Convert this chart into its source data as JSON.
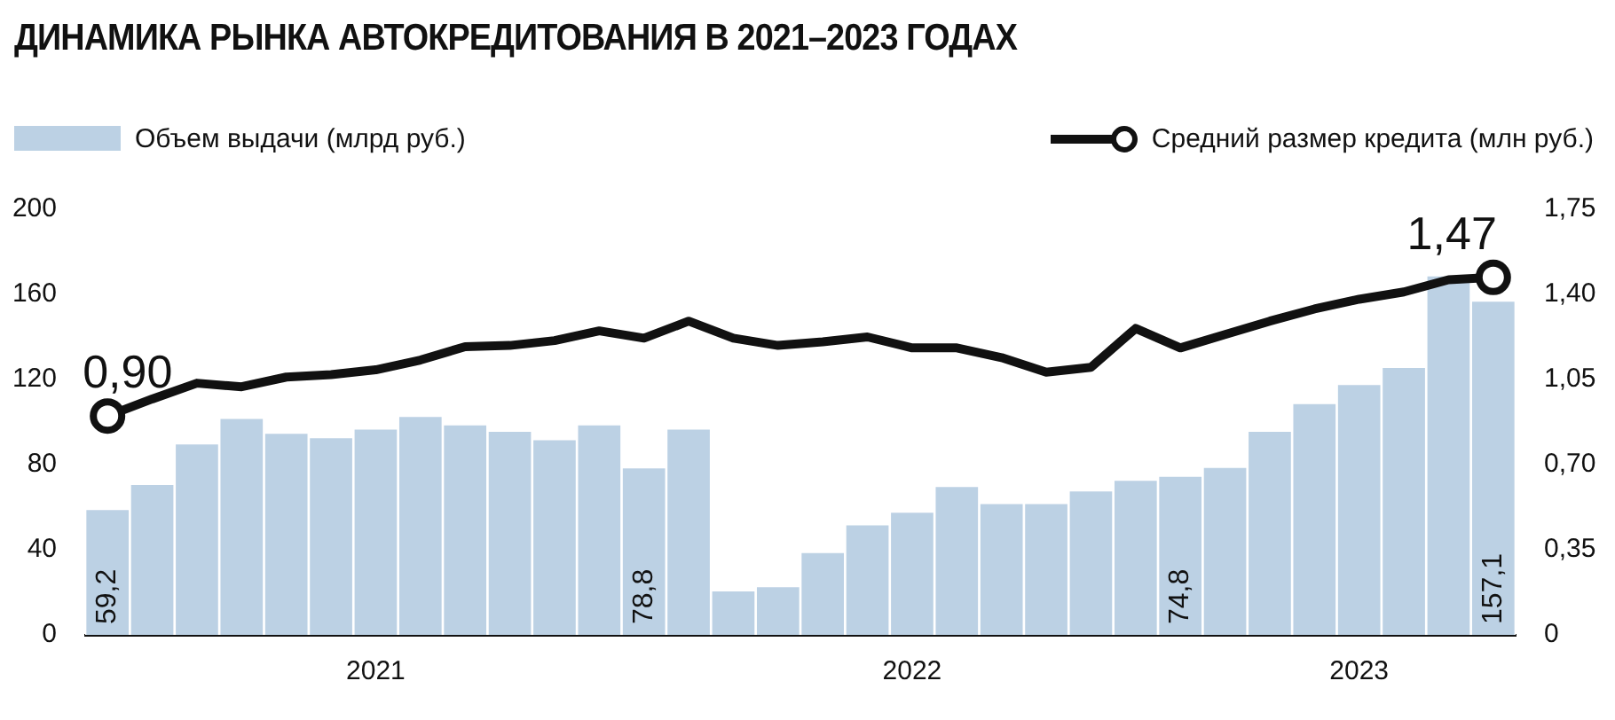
{
  "chart_data": {
    "type": "bar",
    "title": "ДИНАМИКА РЫНКА АВТОКРЕДИТОВАНИЯ В 2021–2023 ГОДАХ",
    "categories": [
      null,
      null,
      null,
      null,
      null,
      null,
      "2021",
      null,
      null,
      null,
      null,
      null,
      null,
      null,
      null,
      null,
      null,
      null,
      "2022",
      null,
      null,
      null,
      null,
      null,
      null,
      null,
      null,
      null,
      "2023",
      null,
      null,
      null
    ],
    "series": [
      {
        "name": "Объем выдачи (млрд руб.)",
        "color": "#bcd1e4",
        "values": [
          59.2,
          71,
          90,
          102,
          95,
          93,
          97,
          103,
          99,
          96,
          92,
          99,
          78.8,
          97,
          21,
          23,
          39,
          52,
          58,
          70,
          62,
          62,
          68,
          73,
          74.8,
          79,
          96,
          109,
          118,
          126,
          169,
          157.1
        ],
        "value_labels": [
          "59,2",
          null,
          null,
          null,
          null,
          null,
          null,
          null,
          null,
          null,
          null,
          null,
          "78,8",
          null,
          null,
          null,
          null,
          null,
          null,
          null,
          null,
          null,
          null,
          null,
          "74,8",
          null,
          null,
          null,
          null,
          null,
          null,
          "157,1"
        ]
      },
      {
        "name": "Средний размер кредита (млн руб.)",
        "type": "line",
        "axis": "y2",
        "color": "#111111",
        "values": [
          0.9,
          0.97,
          1.035,
          1.02,
          1.06,
          1.07,
          1.09,
          1.13,
          1.185,
          1.19,
          1.21,
          1.25,
          1.22,
          1.29,
          1.22,
          1.19,
          1.205,
          1.225,
          1.18,
          1.18,
          1.14,
          1.08,
          1.1,
          1.26,
          1.18,
          1.235,
          1.29,
          1.34,
          1.38,
          1.41,
          1.46,
          1.47
        ],
        "value_labels": [
          "0,90",
          null,
          null,
          null,
          null,
          null,
          null,
          null,
          null,
          null,
          null,
          null,
          null,
          null,
          null,
          null,
          null,
          null,
          null,
          null,
          null,
          null,
          null,
          null,
          null,
          null,
          null,
          null,
          null,
          null,
          null,
          "1,47"
        ]
      }
    ],
    "ylim": [
      0,
      200
    ],
    "yticks": [
      0,
      40,
      80,
      120,
      160,
      200
    ],
    "y2lim": [
      0,
      1.75
    ],
    "y2ticks": [
      {
        "value": 0,
        "label": "0"
      },
      {
        "value": 0.35,
        "label": "0,35"
      },
      {
        "value": 0.7,
        "label": "0,70"
      },
      {
        "value": 1.05,
        "label": "1,05"
      },
      {
        "value": 1.4,
        "label": "1,40"
      },
      {
        "value": 1.75,
        "label": "1,75"
      }
    ],
    "legend": "top",
    "grid": false
  }
}
